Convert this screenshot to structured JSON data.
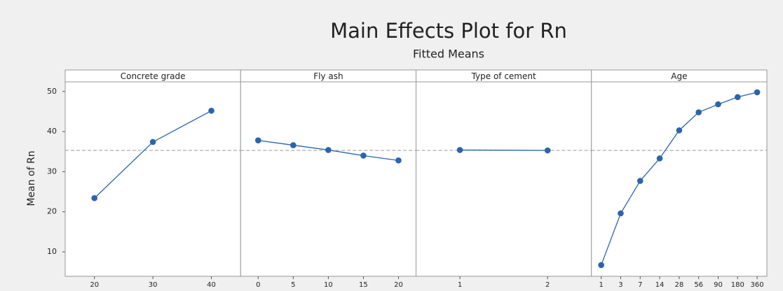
{
  "chart_data": {
    "type": "line",
    "title": "Main Effects Plot for Rn",
    "subtitle": "Fitted Means",
    "y_label": "Mean of Rn",
    "ylim": [
      3.9,
      52.4
    ],
    "yticks": [
      10,
      20,
      30,
      40,
      50
    ],
    "reference_line": 35.3,
    "color": "#2a64ad",
    "panels": [
      {
        "title": "Concrete grade",
        "categories": [
          "20",
          "30",
          "40"
        ],
        "values": [
          23.4,
          37.4,
          45.2
        ]
      },
      {
        "title": "Fly ash",
        "categories": [
          "0",
          "5",
          "10",
          "15",
          "20"
        ],
        "values": [
          37.8,
          36.6,
          35.4,
          34.0,
          32.8
        ]
      },
      {
        "title": "Type of cement",
        "categories": [
          "1",
          "2"
        ],
        "values": [
          35.4,
          35.3
        ]
      },
      {
        "title": "Age",
        "categories": [
          "1",
          "3",
          "7",
          "14",
          "28",
          "56",
          "90",
          "180",
          "360"
        ],
        "values": [
          6.7,
          19.6,
          27.7,
          33.3,
          40.3,
          44.8,
          46.8,
          48.6,
          49.8
        ]
      }
    ]
  }
}
